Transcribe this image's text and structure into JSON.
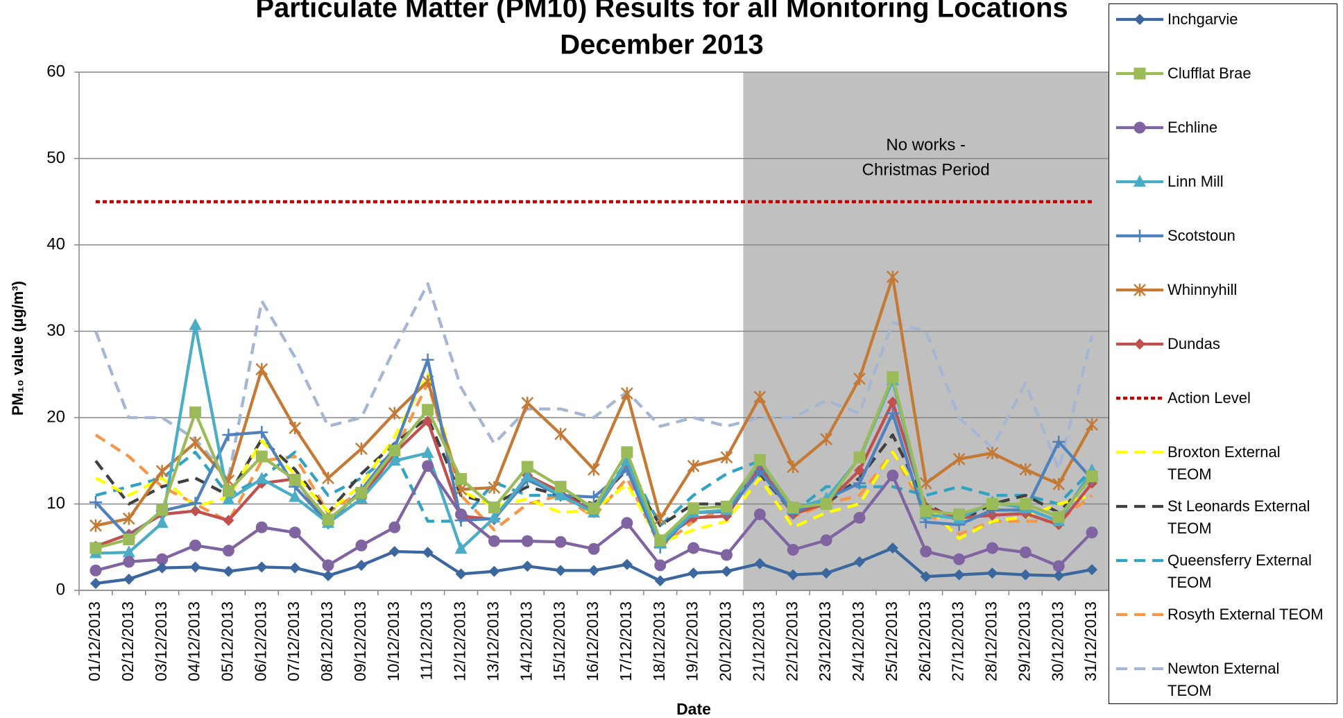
{
  "chart_data": {
    "type": "line",
    "title": [
      "Particulate Matter (PM10) Results for all Monitoring Locations",
      "December 2013"
    ],
    "x_label": "Date",
    "y_label": "PM₁₀ value (µg/m³)",
    "categories": [
      "01/12/2013",
      "02/12/2013",
      "03/12/2013",
      "04/12/2013",
      "05/12/2013",
      "06/12/2013",
      "07/12/2013",
      "08/12/2013",
      "09/12/2013",
      "10/12/2013",
      "11/12/2013",
      "12/12/2013",
      "13/12/2013",
      "14/12/2013",
      "15/12/2013",
      "16/12/2013",
      "17/12/2013",
      "18/12/2013",
      "19/12/2013",
      "20/12/2013",
      "21/12/2013",
      "22/12/2013",
      "23/12/2013",
      "24/12/2013",
      "25/12/2013",
      "26/12/2013",
      "27/12/2013",
      "28/12/2013",
      "29/12/2013",
      "30/12/2013",
      "31/12/2013"
    ],
    "ylim": [
      0,
      60
    ],
    "yticks": [
      0,
      10,
      20,
      30,
      40,
      50,
      60
    ],
    "grid": true,
    "legend": "right",
    "shaded_region": {
      "from": "21/12/2013",
      "to": "31/12/2013",
      "color": "#c0c0c0",
      "label": [
        "No works -",
        "Christmas Period"
      ]
    },
    "series": [
      {
        "name": "Inchgarvie",
        "color": "#3b669e",
        "marker": "diamond",
        "dash": "solid",
        "values": [
          0.8,
          1.3,
          2.6,
          2.7,
          2.2,
          2.7,
          2.6,
          1.7,
          2.9,
          4.5,
          4.4,
          1.9,
          2.2,
          2.8,
          2.3,
          2.3,
          3.0,
          1.1,
          2.0,
          2.2,
          3.1,
          1.8,
          2.0,
          3.3,
          4.9,
          1.6,
          1.8,
          2.0,
          1.8,
          1.7,
          2.4
        ]
      },
      {
        "name": "Clufflat Brae",
        "color": "#9bbb59",
        "marker": "square",
        "dash": "solid",
        "values": [
          4.9,
          5.9,
          9.3,
          20.6,
          11.5,
          15.5,
          12.8,
          8.2,
          11.3,
          16.2,
          20.9,
          12.9,
          9.6,
          14.3,
          12.0,
          9.5,
          16.0,
          5.8,
          9.5,
          9.7,
          15.1,
          9.6,
          10.0,
          15.4,
          24.7,
          9.2,
          8.8,
          10.0,
          10.0,
          8.5,
          13.2
        ]
      },
      {
        "name": "Echline",
        "color": "#8064a2",
        "marker": "circle",
        "dash": "solid",
        "values": [
          2.3,
          3.3,
          3.6,
          5.2,
          4.6,
          7.3,
          6.7,
          2.9,
          5.2,
          7.3,
          14.4,
          8.8,
          5.7,
          5.7,
          5.6,
          4.8,
          7.8,
          2.9,
          4.9,
          4.1,
          8.8,
          4.7,
          5.8,
          8.4,
          13.3,
          4.5,
          3.6,
          4.9,
          4.4,
          2.8,
          6.7
        ]
      },
      {
        "name": "Linn Mill",
        "color": "#4bacc6",
        "marker": "triangle",
        "dash": "solid",
        "values": [
          4.3,
          4.4,
          7.8,
          30.7,
          10.5,
          12.9,
          10.8,
          7.8,
          10.6,
          15.0,
          15.9,
          4.8,
          8.4,
          13.2,
          11.0,
          9.0,
          15.0,
          5.4,
          9.0,
          9.3,
          15.0,
          9.4,
          10.6,
          15.3,
          24.3,
          8.8,
          8.3,
          10.2,
          9.5,
          8.0,
          13.9
        ]
      },
      {
        "name": "Scotstoun",
        "color": "#4f81bd",
        "marker": "plus",
        "dash": "solid",
        "values": [
          10.2,
          6.1,
          9.2,
          10.1,
          18.0,
          18.3,
          12.0,
          7.8,
          11.6,
          16.5,
          26.7,
          8.1,
          8.3,
          12.8,
          11.0,
          10.8,
          14.0,
          5.0,
          9.0,
          9.1,
          13.8,
          9.0,
          10.6,
          12.4,
          20.5,
          7.9,
          7.6,
          9.3,
          9.3,
          17.2,
          12.9
        ]
      },
      {
        "name": "Whinnyhill",
        "color": "#c47a35",
        "marker": "star",
        "dash": "solid",
        "values": [
          7.5,
          8.3,
          13.8,
          17.1,
          12.7,
          25.6,
          18.8,
          13.0,
          16.4,
          20.5,
          24.2,
          11.7,
          11.9,
          21.7,
          18.1,
          14.0,
          22.8,
          8.3,
          14.4,
          15.4,
          22.4,
          14.3,
          17.5,
          24.5,
          36.3,
          12.4,
          15.2,
          15.9,
          14.0,
          12.3,
          19.2
        ]
      },
      {
        "name": "Dundas",
        "color": "#c0504d",
        "marker": "diamond",
        "dash": "solid",
        "values": [
          5.1,
          6.5,
          8.8,
          9.2,
          8.1,
          12.4,
          12.9,
          7.8,
          10.6,
          15.9,
          19.6,
          8.6,
          8.2,
          13.3,
          11.4,
          9.0,
          14.7,
          5.8,
          8.4,
          8.6,
          14.3,
          8.8,
          10.1,
          13.9,
          21.8,
          9.6,
          8.4,
          8.7,
          8.9,
          7.6,
          12.4
        ]
      },
      {
        "name": "Action Level",
        "color": "#c00000",
        "marker": "none",
        "dash": "dot",
        "values": [
          45,
          45,
          45,
          45,
          45,
          45,
          45,
          45,
          45,
          45,
          45,
          45,
          45,
          45,
          45,
          45,
          45,
          45,
          45,
          45,
          45,
          45,
          45,
          45,
          45,
          45,
          45,
          45,
          45,
          45,
          45
        ]
      },
      {
        "name": "Broxton External TEOM",
        "color": "#ffff00",
        "marker": "none",
        "dash": "dash",
        "values": [
          13,
          11,
          13,
          9.7,
          10.8,
          17.3,
          13.4,
          9.1,
          12.2,
          17.8,
          25,
          11.5,
          9.7,
          10.6,
          9.0,
          9.3,
          12.3,
          5.5,
          7.0,
          8.0,
          13.0,
          7.3,
          9.0,
          10.0,
          16.0,
          10.0,
          6.0,
          8.0,
          8.5,
          10.0,
          11.0
        ]
      },
      {
        "name": "St Leonards External TEOM",
        "color": "#404040",
        "marker": "none",
        "dash": "dash",
        "values": [
          15,
          10,
          12,
          13,
          11,
          17.5,
          14,
          9,
          13.5,
          17,
          20,
          11,
          10,
          12,
          11,
          10,
          14,
          7.5,
          10,
          10,
          13.5,
          9,
          10,
          13,
          18,
          10,
          8,
          10,
          11,
          9,
          13
        ]
      },
      {
        "name": "Queensferry External TEOM",
        "color": "#31a2c1",
        "marker": "none",
        "dash": "dash",
        "values": [
          11,
          12,
          13,
          16,
          11,
          13,
          16,
          11,
          13,
          16,
          8,
          8,
          12.5,
          11,
          11,
          9.5,
          15,
          7.5,
          11,
          13.5,
          15,
          9,
          12,
          12,
          12,
          11,
          12,
          11,
          11,
          10,
          14
        ]
      },
      {
        "name": "Rosyth External TEOM",
        "color": "#f79646",
        "marker": "none",
        "dash": "dash",
        "values": [
          18,
          15.5,
          12,
          10,
          8,
          15,
          15.5,
          9,
          11.5,
          16,
          24,
          11,
          7,
          10,
          11,
          8.5,
          13,
          5,
          8,
          9.5,
          15,
          8.5,
          10,
          11,
          16,
          9,
          6.5,
          8,
          8,
          8,
          11
        ]
      },
      {
        "name": "Newton External TEOM",
        "color": "#a5b6d3",
        "marker": "none",
        "dash": "dash",
        "values": [
          30,
          20,
          20,
          17.5,
          13,
          33.5,
          27,
          19,
          20,
          28,
          35.5,
          23.5,
          17,
          21,
          21,
          20,
          23,
          19,
          20,
          19,
          20,
          20,
          22,
          20.5,
          31,
          30,
          20,
          16.5,
          24,
          14,
          29.5
        ]
      }
    ]
  }
}
